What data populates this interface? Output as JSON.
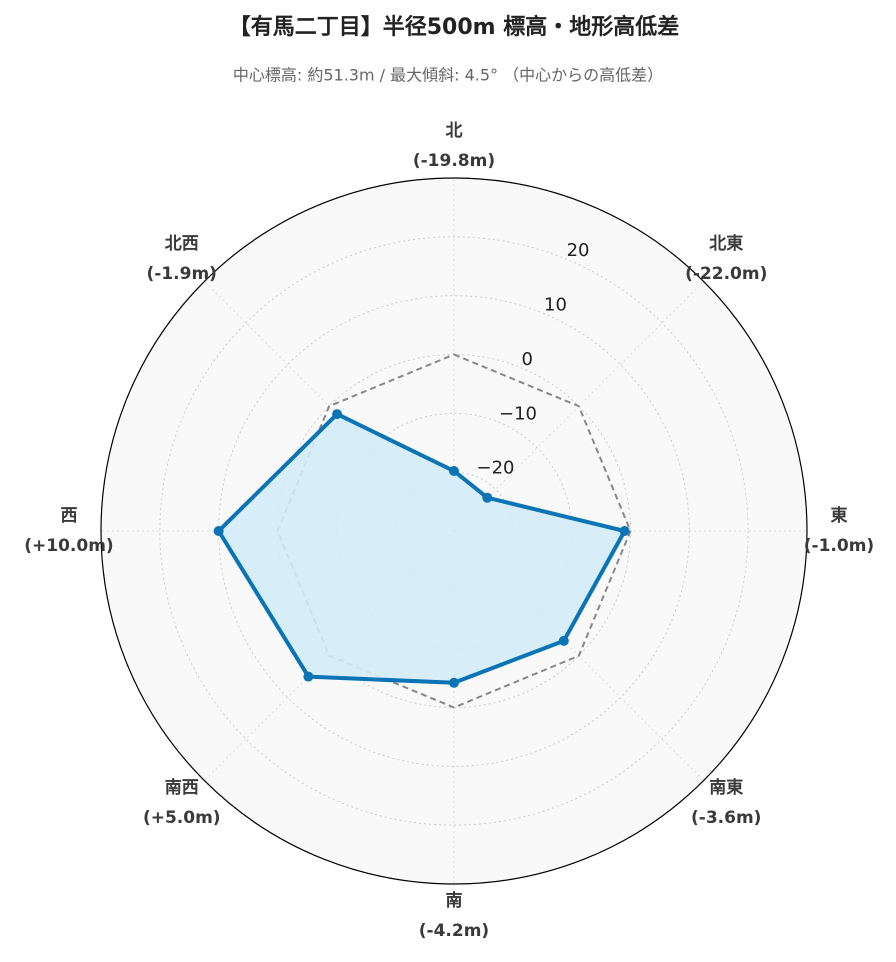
{
  "chart_data": {
    "type": "radar",
    "title": "【有馬二丁目】半径500m 標高・地形高低差",
    "subtitle": "中心標高: 約51.3m / 最大傾斜: 4.5° （中心からの高低差）",
    "categories": [
      "北",
      "北東",
      "東",
      "南東",
      "南",
      "南西",
      "西",
      "北西"
    ],
    "series": [
      {
        "color": "#0a74b5",
        "fill": "#d3ecf8",
        "values": [
          -19.8,
          -22.0,
          -1.0,
          -3.6,
          -4.2,
          5.0,
          10.0,
          -1.9
        ],
        "value_labels": [
          "(-19.8m)",
          "(-22.0m)",
          "(-1.0m)",
          "(-3.6m)",
          "(-4.2m)",
          "(+5.0m)",
          "(+10.0m)",
          "(-1.9m)"
        ]
      }
    ],
    "reference_line": {
      "value": 0,
      "color": "#888888"
    },
    "rlim": [
      -30,
      30
    ],
    "rticks": [
      {
        "value": -20,
        "label": "−20"
      },
      {
        "value": -10,
        "label": "−10"
      },
      0,
      10,
      20
    ],
    "grid": true
  }
}
